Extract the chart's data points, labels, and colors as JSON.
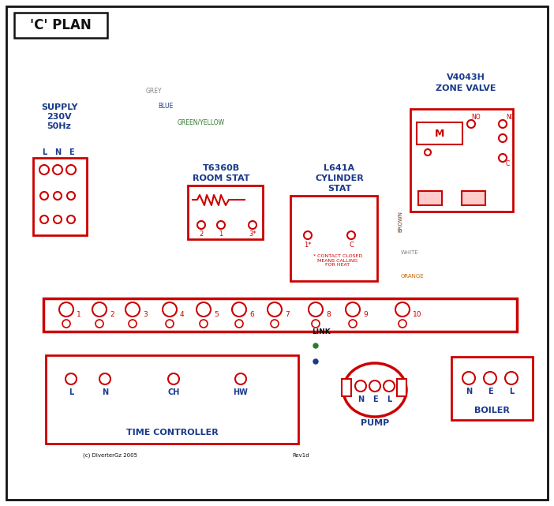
{
  "bg_color": "#ffffff",
  "red": "#cc0000",
  "blue": "#1a3a8a",
  "green": "#2d7a2d",
  "brown": "#6b3a1f",
  "grey": "#888888",
  "orange": "#cc6600",
  "black": "#111111",
  "white": "#ffffff",
  "title": "'C' PLAN",
  "zone_valve_label1": "V4043H",
  "zone_valve_label2": "ZONE VALVE",
  "supply_label": "SUPPLY\n230V\n50Hz",
  "room_stat_label1": "T6360B",
  "room_stat_label2": "ROOM STAT",
  "cyl_stat_label1": "L641A",
  "cyl_stat_label2": "CYLINDER",
  "cyl_stat_label3": "STAT",
  "time_ctrl_label": "TIME CONTROLLER",
  "pump_label": "PUMP",
  "boiler_label": "BOILER",
  "link_label": "LINK",
  "copyright": "(c) DiverterGz 2005",
  "revid": "Rev1d"
}
